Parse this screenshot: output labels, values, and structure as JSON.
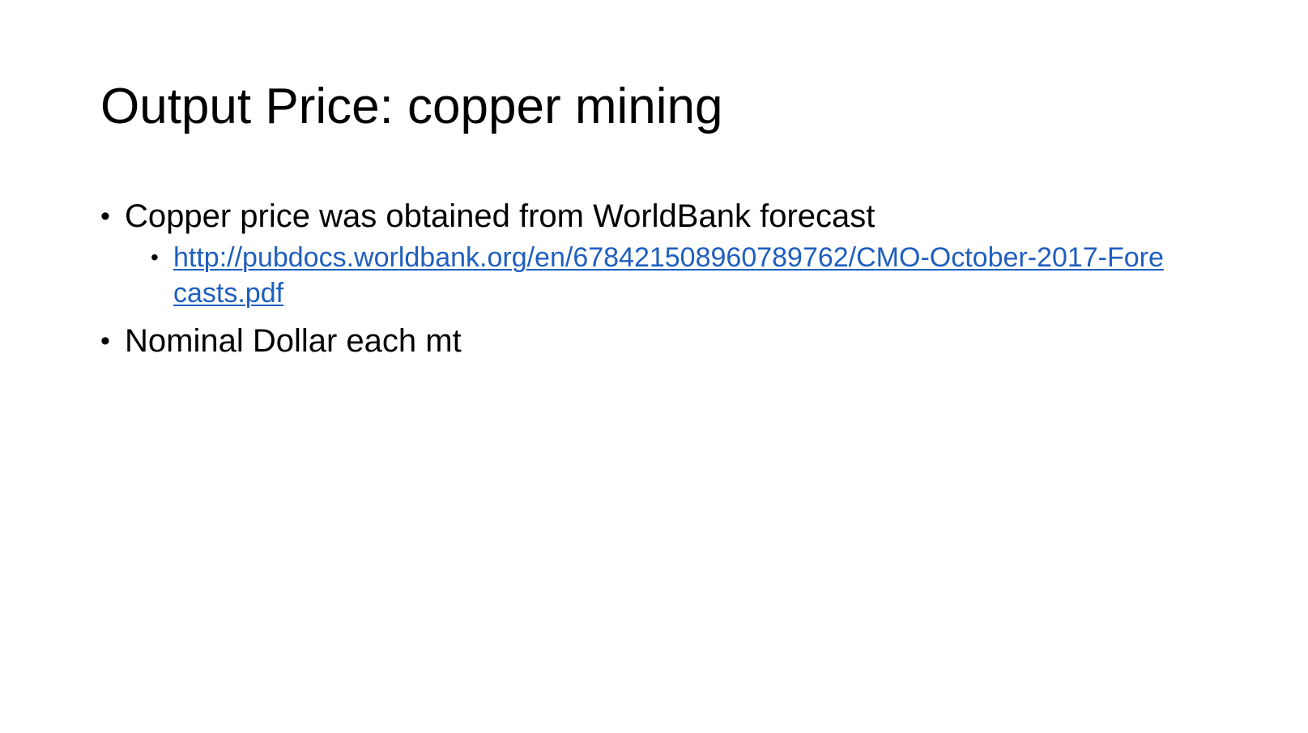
{
  "slide": {
    "title": "Output Price: copper mining",
    "bullets": [
      {
        "text": "Copper price was obtained from WorldBank forecast",
        "sub": {
          "link_text": "http://pubdocs.worldbank.org/en/678421508960789762/CMO-October-2017-Forecasts.pdf"
        }
      },
      {
        "text": "Nominal Dollar each mt"
      }
    ],
    "bullet_glyph": "•",
    "link_color": "#1f5fbf"
  }
}
